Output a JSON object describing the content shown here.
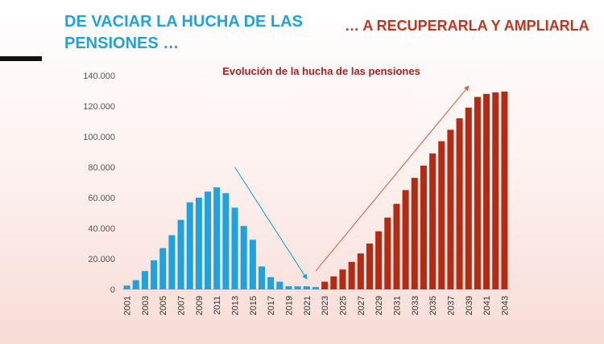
{
  "header": {
    "left_title": "DE VACIAR LA HUCHA DE LAS PENSIONES …",
    "right_title": "… A RECUPERARLA Y AMPLIARLA"
  },
  "colors": {
    "left_title": "#1ea3e0",
    "right_title": "#c0351f",
    "series_past": "#1ea3e0",
    "series_future": "#b52a12"
  },
  "chart_data": {
    "type": "bar",
    "title": "Evolución de la hucha de las pensiones",
    "xlabel": "",
    "ylabel": "",
    "ylim": [
      0,
      140000
    ],
    "y_ticks": [
      "0",
      "20.000",
      "40.000",
      "60.000",
      "80.000",
      "100.000",
      "120.000",
      "140.000"
    ],
    "x_tick_labels": [
      "2001",
      "2003",
      "2005",
      "2007",
      "2009",
      "2011",
      "2013",
      "2015",
      "2017",
      "2019",
      "2021",
      "2023",
      "2025",
      "2027",
      "2029",
      "2031",
      "2033",
      "2035",
      "2037",
      "2039",
      "2041",
      "2043"
    ],
    "categories": [
      "2001",
      "2002",
      "2003",
      "2004",
      "2005",
      "2006",
      "2007",
      "2008",
      "2009",
      "2010",
      "2011",
      "2012",
      "2013",
      "2014",
      "2015",
      "2016",
      "2017",
      "2018",
      "2019",
      "2020",
      "2021",
      "2022",
      "2023",
      "2024",
      "2025",
      "2026",
      "2027",
      "2028",
      "2029",
      "2030",
      "2031",
      "2032",
      "2033",
      "2034",
      "2035",
      "2036",
      "2037",
      "2038",
      "2039",
      "2040",
      "2041",
      "2042",
      "2043"
    ],
    "series": [
      {
        "values": [
          2500,
          6000,
          12000,
          19000,
          27000,
          35500,
          45500,
          57000,
          60000,
          64000,
          66800,
          63000,
          53500,
          41500,
          32500,
          15000,
          8000,
          5000,
          2000,
          2000,
          2000,
          1500,
          null,
          null,
          null,
          null,
          null,
          null,
          null,
          null,
          null,
          null,
          null,
          null,
          null,
          null,
          null,
          null,
          null,
          null,
          null,
          null,
          null
        ]
      },
      {
        "values": [
          null,
          null,
          null,
          null,
          null,
          null,
          null,
          null,
          null,
          null,
          null,
          null,
          null,
          null,
          null,
          null,
          null,
          null,
          null,
          null,
          null,
          null,
          5000,
          8500,
          13000,
          18000,
          23500,
          30000,
          38000,
          47000,
          56000,
          65000,
          73000,
          81000,
          89000,
          97000,
          104500,
          112000,
          119000,
          126000,
          128000,
          129000,
          129500
        ]
      }
    ],
    "annotations": [
      {
        "type": "arrow",
        "color": "#1ea3e0",
        "from": [
          "2013",
          80000
        ],
        "to": [
          "2021",
          7000
        ]
      },
      {
        "type": "arrow",
        "color": "#e0604a",
        "from": [
          "2022",
          12000
        ],
        "to": [
          "2039",
          133000
        ]
      }
    ],
    "grid": false
  }
}
